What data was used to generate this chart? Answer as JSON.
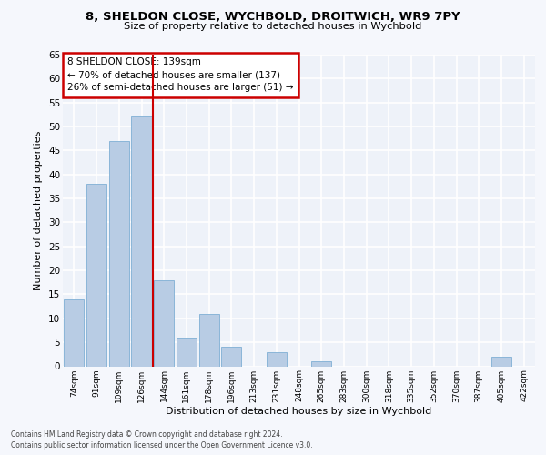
{
  "title1": "8, SHELDON CLOSE, WYCHBOLD, DROITWICH, WR9 7PY",
  "title2": "Size of property relative to detached houses in Wychbold",
  "xlabel": "Distribution of detached houses by size in Wychbold",
  "ylabel": "Number of detached properties",
  "categories": [
    "74sqm",
    "91sqm",
    "109sqm",
    "126sqm",
    "144sqm",
    "161sqm",
    "178sqm",
    "196sqm",
    "213sqm",
    "231sqm",
    "248sqm",
    "265sqm",
    "283sqm",
    "300sqm",
    "318sqm",
    "335sqm",
    "352sqm",
    "370sqm",
    "387sqm",
    "405sqm",
    "422sqm"
  ],
  "values": [
    14,
    38,
    47,
    52,
    18,
    6,
    11,
    4,
    0,
    3,
    0,
    1,
    0,
    0,
    0,
    0,
    0,
    0,
    0,
    2,
    0
  ],
  "bar_color": "#b8cce4",
  "bar_edge_color": "#7fafd4",
  "annotation_text": "8 SHELDON CLOSE: 139sqm\n← 70% of detached houses are smaller (137)\n26% of semi-detached houses are larger (51) →",
  "annotation_box_color": "#ffffff",
  "annotation_box_edge": "#cc0000",
  "vline_color": "#cc0000",
  "ylim": [
    0,
    65
  ],
  "yticks": [
    0,
    5,
    10,
    15,
    20,
    25,
    30,
    35,
    40,
    45,
    50,
    55,
    60,
    65
  ],
  "background_color": "#eef2f9",
  "grid_color": "#ffffff",
  "fig_bg": "#f5f7fc",
  "footer1": "Contains HM Land Registry data © Crown copyright and database right 2024.",
  "footer2": "Contains public sector information licensed under the Open Government Licence v3.0."
}
